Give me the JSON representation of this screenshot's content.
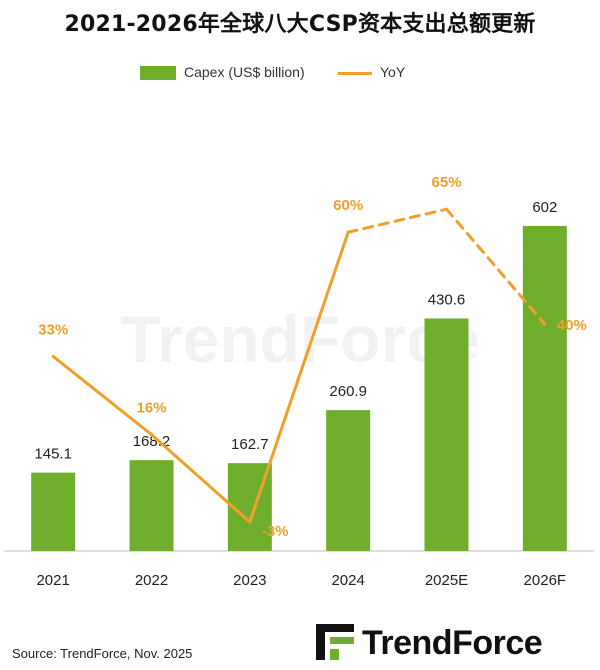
{
  "title": "2021-2026年全球八大CSP资本支出总额更新",
  "legend": {
    "bar_label": "Capex (US$ billion)",
    "line_label": "YoY"
  },
  "colors": {
    "bar": "#6fae2d",
    "line": "#f0a028",
    "yoy_label": "#f0a028",
    "axis": "#bfbfbf"
  },
  "watermark": "TrendForce",
  "source": "Source: TrendForce, Nov. 2025",
  "logo": {
    "text": "TrendForce"
  },
  "chart_data": {
    "type": "bar",
    "title": "2021-2026年全球八大CSP资本支出总额更新",
    "categories": [
      "2021",
      "2022",
      "2023",
      "2024",
      "2025E",
      "2026F"
    ],
    "series": [
      {
        "name": "Capex (US$ billion)",
        "type": "bar",
        "values": [
          145.1,
          168.2,
          162.7,
          260.9,
          430.6,
          602
        ],
        "labels": [
          "145.1",
          "168.2",
          "162.7",
          "260.9",
          "430.6",
          "602"
        ]
      },
      {
        "name": "YoY",
        "type": "line",
        "values": [
          33,
          16,
          -3,
          60,
          65,
          40
        ],
        "labels": [
          "33%",
          "16%",
          "-3%",
          "60%",
          "65%",
          "40%"
        ],
        "dashed_segments": [
          [
            3,
            4
          ],
          [
            4,
            5
          ]
        ]
      }
    ],
    "xlabel": "",
    "ylabel": "",
    "ylim": [
      0,
      650
    ],
    "y2lim": [
      -13,
      95
    ],
    "grid": false
  }
}
